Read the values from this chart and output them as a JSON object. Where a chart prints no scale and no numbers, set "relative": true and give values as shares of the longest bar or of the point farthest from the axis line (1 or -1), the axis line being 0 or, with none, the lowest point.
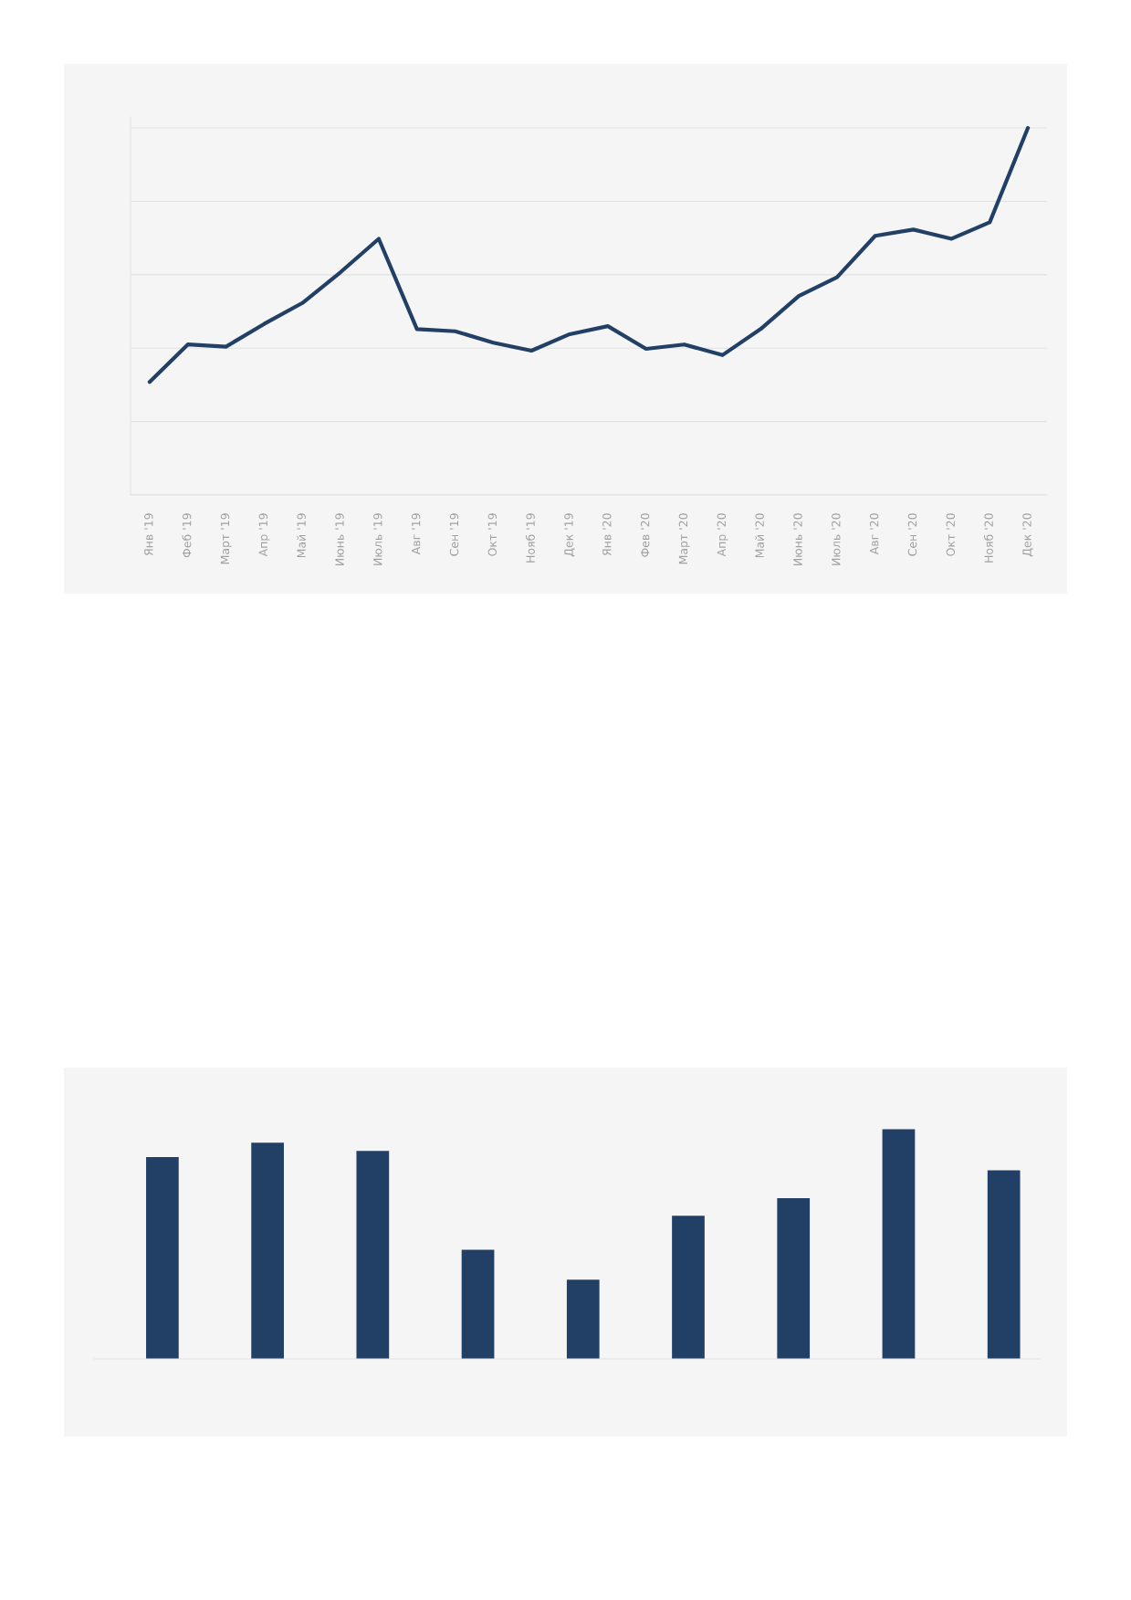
{
  "chart_data": [
    {
      "type": "line",
      "relative": true,
      "grid": "y",
      "color": "#223f66",
      "marker": "none",
      "line_style": "solid",
      "categories": [
        "Янв '19",
        "Феб '19",
        "Март '19",
        "Апр '19",
        "Май '19",
        "Июнь '19",
        "Июль '19",
        "Авг '19",
        "Сен '19",
        "Окт '19",
        "Нояб '19",
        "Дек '19",
        "Янв '20",
        "Фев '20",
        "Март '20",
        "Апр '20",
        "Май '20",
        "Июнь '20",
        "Июль '20",
        "Авг '20",
        "Сен '20",
        "Окт '20",
        "Нояб '20",
        "Дек '20"
      ],
      "values": [
        0.308,
        0.41,
        0.404,
        0.466,
        0.523,
        0.607,
        0.698,
        0.452,
        0.446,
        0.415,
        0.393,
        0.438,
        0.46,
        0.398,
        0.41,
        0.381,
        0.452,
        0.542,
        0.593,
        0.706,
        0.723,
        0.698,
        0.743,
        1.0
      ]
    },
    {
      "type": "bar",
      "relative": true,
      "color": "#223f66",
      "categories": [
        null,
        null,
        null,
        null,
        null,
        null,
        null,
        null,
        null
      ],
      "values": [
        0.879,
        0.942,
        0.906,
        0.475,
        0.345,
        0.623,
        0.7,
        1.0,
        0.821
      ]
    }
  ]
}
